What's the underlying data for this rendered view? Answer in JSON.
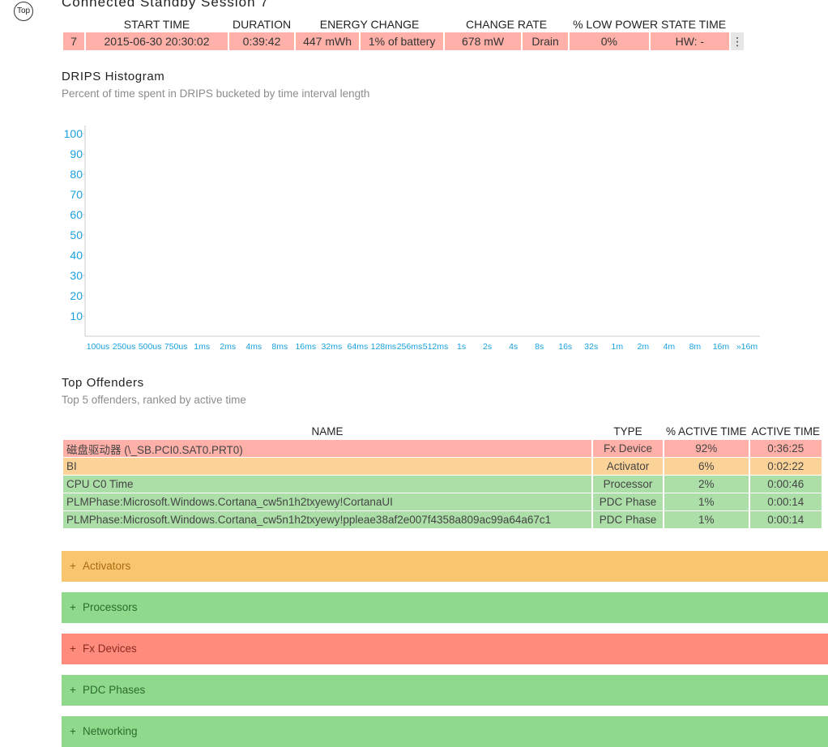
{
  "nav": {
    "top_label": "Top"
  },
  "session": {
    "title": "Connected Standby Session 7",
    "headers": [
      "",
      "START TIME",
      "DURATION",
      "ENERGY CHANGE",
      "",
      "CHANGE RATE",
      "",
      "% LOW POWER STATE TIME",
      ""
    ],
    "row": [
      "7",
      "2015-06-30  20:30:02",
      "0:39:42",
      "447 mWh",
      "1% of battery",
      "678 mW",
      "Drain",
      "0%",
      "HW: -"
    ],
    "menu_icon": "more-vertical-icon",
    "menu_glyph": "⋮"
  },
  "histogram": {
    "title": "DRIPS Histogram",
    "subtitle": "Percent of time spent in DRIPS bucketed by time interval length"
  },
  "chart_data": {
    "type": "bar",
    "title": "DRIPS Histogram",
    "subtitle": "Percent of time spent in DRIPS bucketed by time interval length",
    "categories": [
      "100us",
      "250us",
      "500us",
      "750us",
      "1ms",
      "2ms",
      "4ms",
      "8ms",
      "16ms",
      "32ms",
      "64ms",
      "128ms",
      "256ms",
      "512ms",
      "1s",
      "2s",
      "4s",
      "8s",
      "16s",
      "32s",
      "1m",
      "2m",
      "4m",
      "8m",
      "16m",
      "»16m"
    ],
    "values": [
      0,
      0,
      0,
      0,
      0,
      0,
      0,
      0,
      0,
      0,
      0,
      0,
      0,
      0,
      0,
      0,
      0,
      0,
      0,
      0,
      0,
      0,
      0,
      0,
      0,
      0
    ],
    "yticks": [
      10,
      20,
      30,
      40,
      50,
      60,
      70,
      80,
      90,
      100
    ],
    "ylim": [
      0,
      100
    ],
    "xlabel": "",
    "ylabel": "",
    "grid": false,
    "tick_color": "#1aa1e0"
  },
  "offenders": {
    "title": "Top Offenders",
    "subtitle": "Top 5 offenders, ranked by active time",
    "headers": {
      "name": "NAME",
      "type": "TYPE",
      "pct": "% ACTIVE TIME",
      "atime": "ACTIVE TIME"
    },
    "rows": [
      {
        "name": "磁盘驱动器 (\\_SB.PCI0.SAT0.PRT0)",
        "type": "Fx Device",
        "pct": "92%",
        "time": "0:36:25",
        "color": "red"
      },
      {
        "name": "BI",
        "type": "Activator",
        "pct": "6%",
        "time": "0:02:22",
        "color": "orange"
      },
      {
        "name": "CPU C0 Time",
        "type": "Processor",
        "pct": "2%",
        "time": "0:00:46",
        "color": "green"
      },
      {
        "name": "PLMPhase:Microsoft.Windows.Cortana_cw5n1h2txyewy!CortanaUI",
        "type": "PDC Phase",
        "pct": "1%",
        "time": "0:00:14",
        "color": "green"
      },
      {
        "name": "PLMPhase:Microsoft.Windows.Cortana_cw5n1h2txyewy!ppleae38af2e007f4358a809ac99a64a67c1",
        "type": "PDC Phase",
        "pct": "1%",
        "time": "0:00:14",
        "color": "green"
      }
    ]
  },
  "sections": [
    {
      "label": "Activators",
      "color": "orange"
    },
    {
      "label": "Processors",
      "color": "green"
    },
    {
      "label": "Fx Devices",
      "color": "red"
    },
    {
      "label": "PDC Phases",
      "color": "green"
    },
    {
      "label": "Networking",
      "color": "green"
    }
  ],
  "section_toggle": "+",
  "colors": {
    "red": "#ffb0a8",
    "orange": "#fbd398",
    "green": "#acdfa8",
    "accent_blue": "#1aa1e0"
  }
}
